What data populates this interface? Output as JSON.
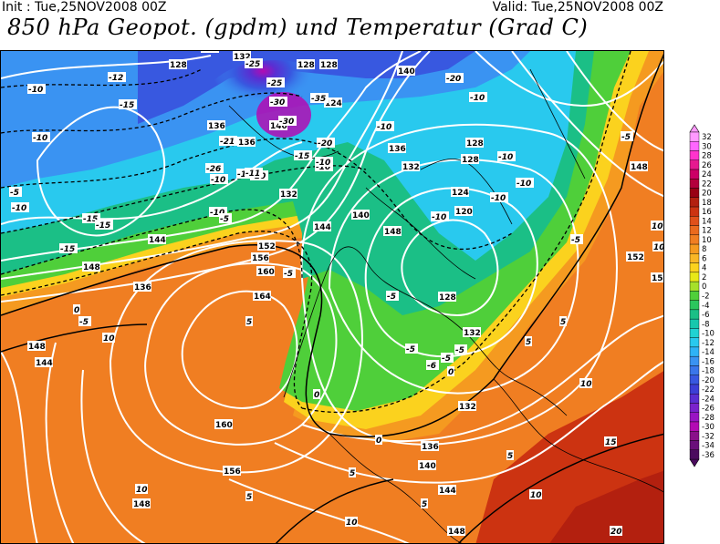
{
  "header": {
    "init_text": "Init : Tue,25NOV2008 00Z",
    "valid_text": "Valid: Tue,25NOV2008 00Z",
    "title": "850 hPa Geopot. (gpdm) und Temperatur (Grad C)"
  },
  "legend": {
    "entries": [
      {
        "value": "32",
        "color": "#ff99ff"
      },
      {
        "value": "30",
        "color": "#ff66ff"
      },
      {
        "value": "28",
        "color": "#ff33cc"
      },
      {
        "value": "26",
        "color": "#e6198f"
      },
      {
        "value": "24",
        "color": "#cc0066"
      },
      {
        "value": "22",
        "color": "#b3003c"
      },
      {
        "value": "20",
        "color": "#990014"
      },
      {
        "value": "18",
        "color": "#b3200f"
      },
      {
        "value": "16",
        "color": "#cc3311"
      },
      {
        "value": "14",
        "color": "#e0501a"
      },
      {
        "value": "12",
        "color": "#ea6a1e"
      },
      {
        "value": "10",
        "color": "#f07e22"
      },
      {
        "value": "8",
        "color": "#f59a20"
      },
      {
        "value": "6",
        "color": "#f9b726"
      },
      {
        "value": "4",
        "color": "#fbd21e"
      },
      {
        "value": "2",
        "color": "#e8e817"
      },
      {
        "value": "0",
        "color": "#a6e02a"
      },
      {
        "value": "-2",
        "color": "#4fcf3a"
      },
      {
        "value": "-4",
        "color": "#2cc65d"
      },
      {
        "value": "-6",
        "color": "#1bbf86"
      },
      {
        "value": "-8",
        "color": "#17c7ad"
      },
      {
        "value": "-10",
        "color": "#20d2d2"
      },
      {
        "value": "-12",
        "color": "#29c9ee"
      },
      {
        "value": "-14",
        "color": "#2fb2f6"
      },
      {
        "value": "-16",
        "color": "#3a93f2"
      },
      {
        "value": "-18",
        "color": "#3a76ea"
      },
      {
        "value": "-20",
        "color": "#3858e0"
      },
      {
        "value": "-22",
        "color": "#3c3fd6"
      },
      {
        "value": "-24",
        "color": "#5a2ed2"
      },
      {
        "value": "-26",
        "color": "#7a22cc"
      },
      {
        "value": "-28",
        "color": "#9915c3"
      },
      {
        "value": "-30",
        "color": "#b30bb3"
      },
      {
        "value": "-32",
        "color": "#8a108a"
      },
      {
        "value": "-34",
        "color": "#6a0f7a"
      },
      {
        "value": "-36",
        "color": "#4b0c5e"
      }
    ]
  },
  "map": {
    "geopotential_labels": [
      "128",
      "132",
      "128",
      "128",
      "140",
      "136",
      "136",
      "140",
      "124",
      "136",
      "128",
      "132",
      "128",
      "124",
      "140",
      "144",
      "120",
      "148",
      "144",
      "132",
      "152",
      "136",
      "148",
      "156",
      "148",
      "152",
      "160",
      "164",
      "144",
      "148",
      "128",
      "132",
      "132",
      "160",
      "136",
      "140",
      "156",
      "144",
      "148",
      "148",
      "156"
    ],
    "temperature_labels": [
      "-10",
      "-12",
      "-15",
      "-10",
      "-20",
      "-25",
      "-25",
      "-30",
      "-35",
      "-30",
      "-20",
      "-15",
      "-10",
      "-20",
      "-10",
      "-10",
      "-5",
      "-5",
      "-10",
      "-15",
      "-15",
      "-10",
      "-10",
      "-10",
      "-10",
      "-10",
      "-5",
      "-5",
      "-5",
      "0",
      "-5",
      "-5",
      "-5",
      "-6",
      "-5",
      "0",
      "0",
      "5",
      "5",
      "10",
      "10",
      "10",
      "10",
      "10",
      "15",
      "20",
      "20",
      "10",
      "5",
      "5",
      "0",
      "5",
      "10",
      "5",
      "5",
      "-15",
      "-10",
      "-10",
      "-10",
      "-5",
      "-21",
      "-26",
      "-11",
      "-10"
    ]
  }
}
